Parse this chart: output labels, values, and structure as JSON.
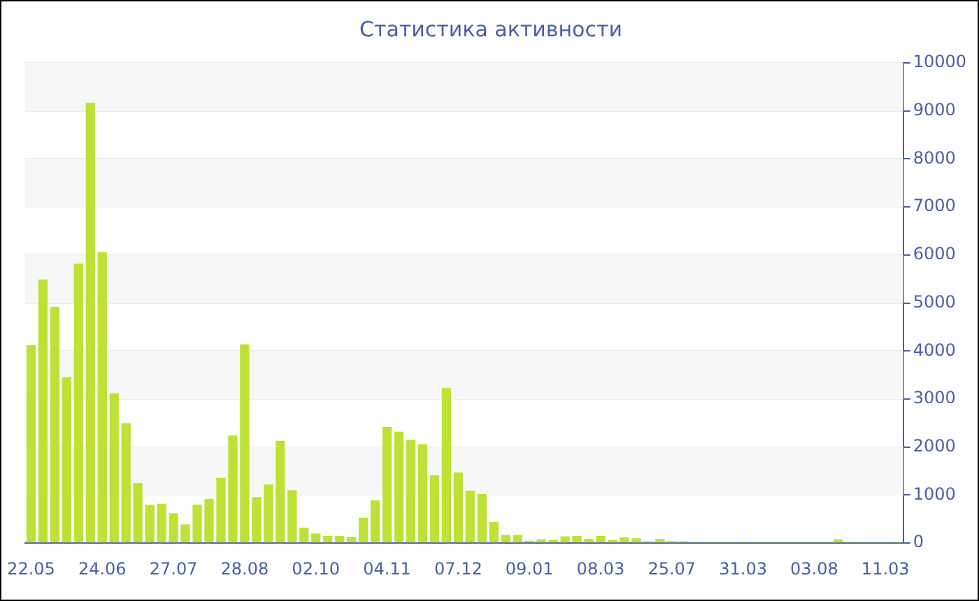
{
  "chart_data": {
    "type": "bar",
    "title": "Статистика активности",
    "categories": [
      "22.05",
      null,
      null,
      null,
      null,
      null,
      "24.06",
      null,
      null,
      null,
      null,
      null,
      "27.07",
      null,
      null,
      null,
      null,
      null,
      "28.08",
      null,
      null,
      null,
      null,
      null,
      "02.10",
      null,
      null,
      null,
      null,
      null,
      "04.11",
      null,
      null,
      null,
      null,
      null,
      "07.12",
      null,
      null,
      null,
      null,
      null,
      "09.01",
      null,
      null,
      null,
      null,
      null,
      "08.03",
      null,
      null,
      null,
      null,
      null,
      "25.07",
      null,
      null,
      null,
      null,
      null,
      "31.03",
      null,
      null,
      null,
      null,
      null,
      "03.08",
      null,
      null,
      null,
      null,
      null,
      "11.03",
      null
    ],
    "values": [
      4120,
      5490,
      4920,
      3450,
      5820,
      9170,
      6060,
      3120,
      2500,
      1250,
      800,
      820,
      620,
      390,
      800,
      920,
      1360,
      2240,
      4140,
      960,
      1220,
      2130,
      1100,
      320,
      200,
      150,
      150,
      130,
      530,
      890,
      2420,
      2320,
      2150,
      2060,
      1410,
      3230,
      1470,
      1090,
      1020,
      440,
      170,
      170,
      50,
      80,
      70,
      140,
      150,
      90,
      150,
      60,
      120,
      100,
      40,
      90,
      40,
      40,
      30,
      30,
      30,
      30,
      30,
      30,
      30,
      30,
      30,
      30,
      30,
      30,
      80,
      30,
      30,
      30,
      30,
      30
    ],
    "color": "#bde134",
    "ylim": [
      0,
      10000
    ],
    "yticks": [
      0,
      1000,
      2000,
      3000,
      4000,
      5000,
      6000,
      7000,
      8000,
      9000,
      10000
    ],
    "grid": "y"
  }
}
